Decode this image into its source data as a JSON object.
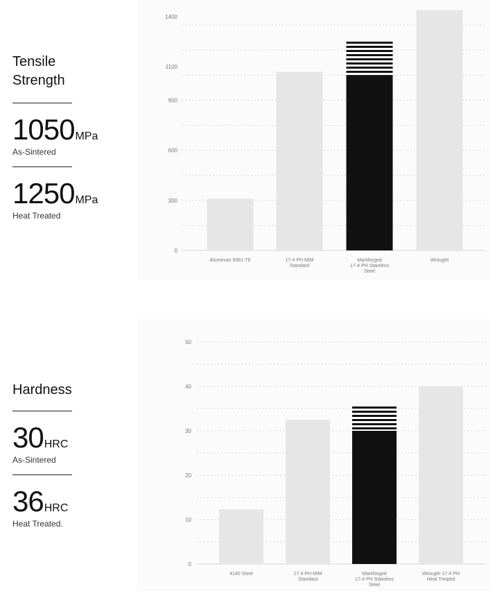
{
  "tensile": {
    "title_line1": "Tensile",
    "title_line2": "Strength",
    "as_sintered": {
      "value": "1050",
      "unit": "MPa",
      "label": "As-Sintered"
    },
    "heat_treated": {
      "value": "1250",
      "unit": "MPa",
      "label": "Heat Treated"
    }
  },
  "hardness": {
    "title": "Hardness",
    "as_sintered": {
      "value": "30",
      "unit": "HRC",
      "label": "As-Sintered"
    },
    "heat_treated": {
      "value": "36",
      "unit": "HRC",
      "label": "Heat Treated."
    }
  },
  "colors": {
    "bar": "#e6e6e6",
    "highlight": "#111111",
    "tick_text": "#777777",
    "grid": "#d4d4d4"
  },
  "chart_data": [
    {
      "type": "bar",
      "title": "",
      "xlabel": "",
      "ylabel": "",
      "ylim": [
        0,
        1500
      ],
      "yticks": [
        0,
        300,
        600,
        900,
        1100,
        1400
      ],
      "grid": true,
      "categories": [
        [
          "Aluminum 6061-T6"
        ],
        [
          "17-4 PH MIM",
          "Standard"
        ],
        [
          "Markforged",
          "17-4 PH Stainless",
          "Steel"
        ],
        [
          "Wrought"
        ]
      ],
      "values": [
        310,
        1070,
        1050,
        1440
      ],
      "highlight_index": 2,
      "heat_treated_value": 1250
    },
    {
      "type": "bar",
      "title": "",
      "xlabel": "",
      "ylabel": "",
      "ylim": [
        0,
        50
      ],
      "yticks": [
        0,
        10,
        20,
        30,
        40,
        50
      ],
      "grid": true,
      "categories": [
        [
          "4140 Steel"
        ],
        [
          "17-4 PH MIM",
          "Standard"
        ],
        [
          "Markforged",
          "17-4 PH Stainless",
          "Steel"
        ],
        [
          "Wrought 17-4 PH",
          "Heat Treated"
        ]
      ],
      "values": [
        12.3,
        32.5,
        30,
        40
      ],
      "highlight_index": 2,
      "heat_treated_value": 35.5
    }
  ]
}
